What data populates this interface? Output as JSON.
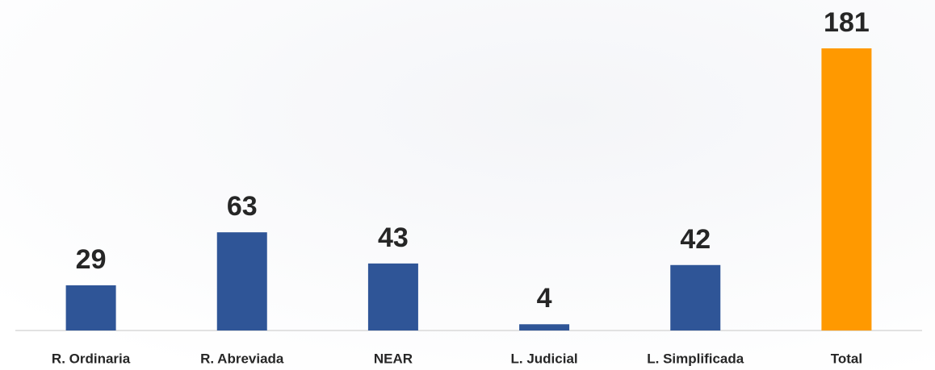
{
  "chart_data": {
    "type": "bar",
    "categories": [
      "R. Ordinaria",
      "R. Abreviada",
      "NEAR",
      "L. Judicial",
      "L. Simplificada",
      "Total"
    ],
    "values": [
      29,
      63,
      43,
      4,
      42,
      181
    ],
    "colors": [
      "#2f5597",
      "#2f5597",
      "#2f5597",
      "#2f5597",
      "#2f5597",
      "#ff9900"
    ]
  }
}
